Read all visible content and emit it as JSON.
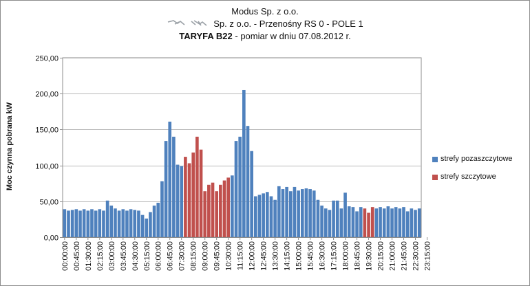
{
  "chart_data": {
    "type": "bar",
    "title_line1": "Modus Sp. z o.o.",
    "title_line2": "Sp. z o.o. - Przenośny RS 0 - POLE 1",
    "title_line3_bold": "TARYFA  B22",
    "title_line3_rest": " - pomiar w dniu 07.08.2012 r.",
    "ylabel": "Moc czynna  pobrana  kW",
    "xlabel": "",
    "ylim": [
      0,
      250
    ],
    "yticks": [
      "0,00",
      "50,00",
      "100,00",
      "150,00",
      "200,00",
      "250,00"
    ],
    "ytick_values": [
      0,
      50,
      100,
      150,
      200,
      250
    ],
    "grid": true,
    "legend_position": "right",
    "colors": {
      "strefy pozaszczytowe": "#4f81bd",
      "strefy szczytowe": "#c0504d",
      "grid": "#b7b7b7",
      "axis": "#8c8c8c"
    },
    "series": [
      {
        "name": "strefy pozaszczytowe",
        "color": "#4f81bd"
      },
      {
        "name": "strefy szczytowe",
        "color": "#c0504d"
      }
    ],
    "tick_labels": [
      "00:00:00",
      "00:45:00",
      "01:30:00",
      "02:15:00",
      "03:00:00",
      "03:45:00",
      "04:30:00",
      "05:15:00",
      "06:00:00",
      "06:45:00",
      "07:30:00",
      "08:15:00",
      "09:00:00",
      "09:45:00",
      "10:30:00",
      "11:15:00",
      "12:00:00",
      "12:45:00",
      "13:30:00",
      "14:15:00",
      "15:00:00",
      "15:45:00",
      "16:30:00",
      "17:15:00",
      "18:00:00",
      "18:45:00",
      "19:30:00",
      "20:15:00",
      "21:00:00",
      "21:45:00",
      "22:30:00",
      "23:15:00"
    ],
    "values": [
      39,
      37,
      38,
      39,
      37,
      39,
      37,
      39,
      37,
      39,
      37,
      51,
      44,
      40,
      37,
      39,
      37,
      39,
      38,
      37,
      31,
      26,
      35,
      44,
      48,
      78,
      134,
      161,
      140,
      101,
      99,
      112,
      103,
      118,
      140,
      122,
      64,
      73,
      76,
      64,
      73,
      79,
      83,
      86,
      134,
      140,
      205,
      155,
      120,
      57,
      59,
      61,
      63,
      57,
      52,
      71,
      67,
      70,
      64,
      70,
      65,
      67,
      68,
      67,
      65,
      52,
      44,
      40,
      38,
      51,
      51,
      40,
      62,
      43,
      42,
      36,
      42,
      40,
      34,
      42,
      40,
      42,
      40,
      43,
      40,
      42,
      40,
      42,
      36,
      40,
      38,
      40
    ],
    "series_index": [
      0,
      0,
      0,
      0,
      0,
      0,
      0,
      0,
      0,
      0,
      0,
      0,
      0,
      0,
      0,
      0,
      0,
      0,
      0,
      0,
      0,
      0,
      0,
      0,
      0,
      0,
      0,
      0,
      0,
      0,
      0,
      1,
      1,
      1,
      1,
      1,
      1,
      1,
      1,
      1,
      1,
      1,
      1,
      0,
      0,
      0,
      0,
      0,
      0,
      0,
      0,
      0,
      0,
      0,
      0,
      0,
      0,
      0,
      0,
      0,
      0,
      0,
      0,
      0,
      0,
      0,
      0,
      0,
      0,
      0,
      0,
      0,
      0,
      0,
      0,
      0,
      0,
      1,
      1,
      1,
      0,
      0,
      0,
      0,
      0,
      0,
      0,
      0,
      0,
      0,
      0,
      0
    ]
  }
}
